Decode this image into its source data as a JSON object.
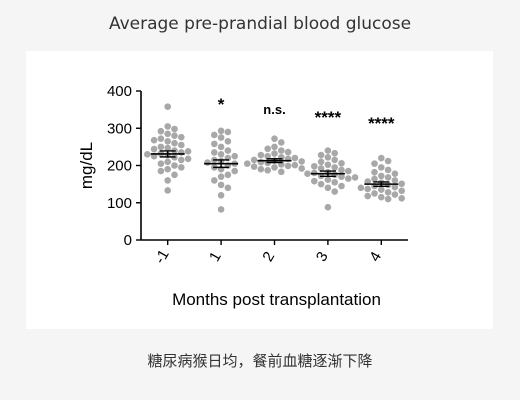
{
  "header": {
    "title": "Average pre-prandial blood glucose"
  },
  "footer": {
    "caption": "糖尿病猴日均，餐前血糖逐渐下降"
  },
  "chart_data": {
    "type": "scatter",
    "subtype": "dot-plot with mean ± SEM",
    "xlabel": "Months post transplantation",
    "ylabel": "mg/dL",
    "categories": [
      "-1",
      "1",
      "2",
      "3",
      "4"
    ],
    "ylim": [
      0,
      400
    ],
    "yticks": [
      0,
      100,
      200,
      300,
      400
    ],
    "grid": false,
    "point_color": "#a8a8a8",
    "groups": [
      {
        "category": "-1",
        "mean": 231,
        "sem": 8,
        "annotation": "",
        "values": [
          358,
          305,
          298,
          292,
          285,
          280,
          276,
          272,
          268,
          265,
          260,
          255,
          250,
          247,
          244,
          240,
          238,
          235,
          232,
          230,
          228,
          225,
          222,
          218,
          215,
          210,
          205,
          200,
          195,
          190,
          185,
          175,
          160,
          133
        ]
      },
      {
        "category": "1",
        "mean": 205,
        "sem": 10,
        "annotation": "*",
        "values": [
          293,
          290,
          282,
          275,
          265,
          258,
          250,
          240,
          235,
          230,
          225,
          220,
          215,
          212,
          208,
          205,
          200,
          195,
          190,
          185,
          175,
          170,
          160,
          148,
          140,
          120,
          82
        ]
      },
      {
        "category": "2",
        "mean": 213,
        "sem": 5,
        "annotation": "n.s.",
        "values": [
          272,
          262,
          250,
          245,
          240,
          236,
          232,
          228,
          225,
          222,
          220,
          218,
          215,
          213,
          211,
          209,
          207,
          205,
          203,
          201,
          199,
          197,
          195,
          192,
          190,
          187,
          183
        ]
      },
      {
        "category": "3",
        "mean": 178,
        "sem": 7,
        "annotation": "****",
        "values": [
          240,
          233,
          228,
          222,
          215,
          210,
          206,
          202,
          198,
          195,
          192,
          188,
          185,
          182,
          180,
          178,
          175,
          172,
          170,
          168,
          165,
          162,
          158,
          155,
          150,
          145,
          140,
          130,
          88
        ]
      },
      {
        "category": "4",
        "mean": 150,
        "sem": 6,
        "annotation": "****",
        "values": [
          220,
          212,
          205,
          195,
          188,
          182,
          178,
          172,
          168,
          164,
          160,
          157,
          154,
          151,
          148,
          145,
          142,
          140,
          137,
          135,
          132,
          128,
          125,
          122,
          118,
          115,
          112,
          110
        ]
      }
    ]
  }
}
